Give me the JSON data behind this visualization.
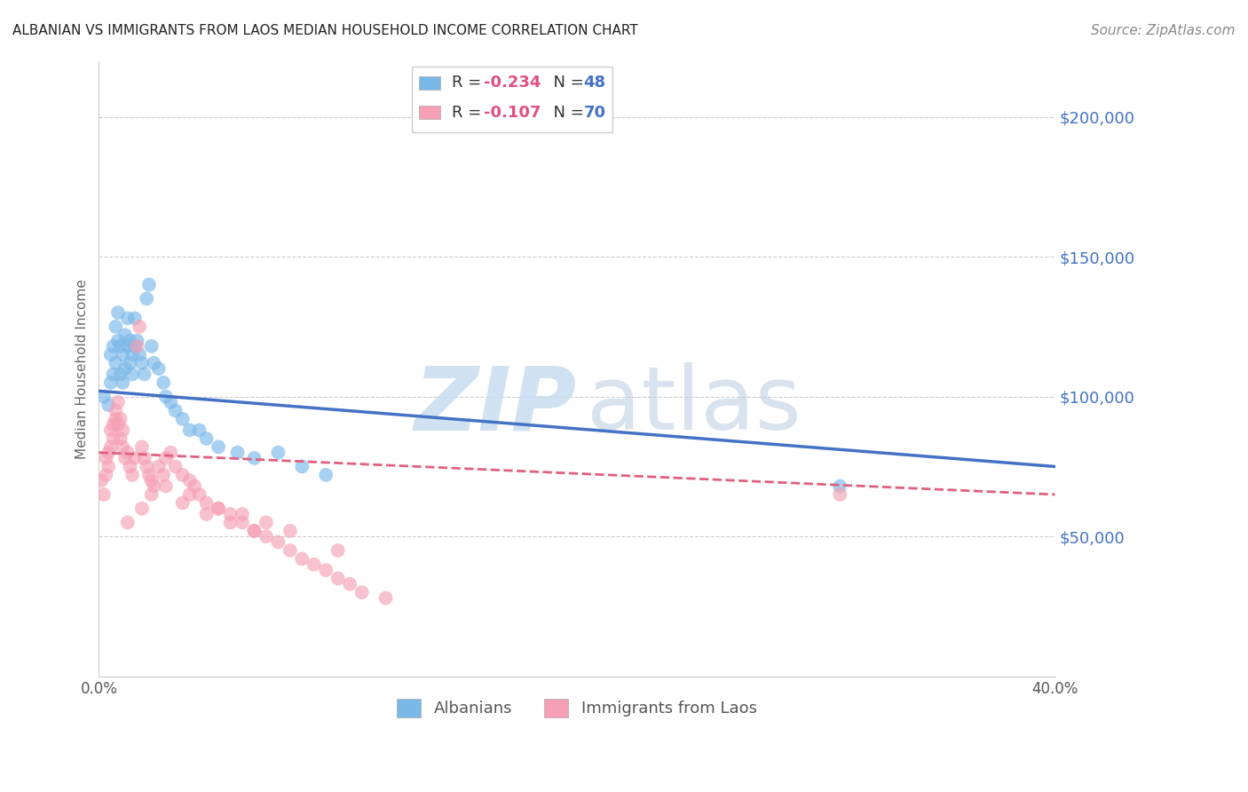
{
  "title": "ALBANIAN VS IMMIGRANTS FROM LAOS MEDIAN HOUSEHOLD INCOME CORRELATION CHART",
  "source": "Source: ZipAtlas.com",
  "ylabel": "Median Household Income",
  "background_color": "#ffffff",
  "legend_r1": "R = -0.234",
  "legend_n1": "N = 48",
  "legend_r2": "R = -0.107",
  "legend_n2": "N = 70",
  "legend_label1": "Albanians",
  "legend_label2": "Immigrants from Laos",
  "blue_color": "#7ab8e8",
  "pink_color": "#f5a0b5",
  "blue_line_color": "#4472c4",
  "pink_line_color": "#e06080",
  "ytick_labels": [
    "$50,000",
    "$100,000",
    "$150,000",
    "$200,000"
  ],
  "ytick_values": [
    50000,
    100000,
    150000,
    200000
  ],
  "ymin": 0,
  "ymax": 220000,
  "xmin": 0.0,
  "xmax": 0.4,
  "blue_line_x": [
    0.0,
    0.4
  ],
  "blue_line_y": [
    102000,
    75000
  ],
  "pink_line_x": [
    0.0,
    0.4
  ],
  "pink_line_y": [
    80000,
    65000
  ],
  "albanians_x": [
    0.002,
    0.004,
    0.005,
    0.005,
    0.006,
    0.006,
    0.007,
    0.007,
    0.008,
    0.008,
    0.009,
    0.009,
    0.01,
    0.01,
    0.011,
    0.011,
    0.012,
    0.012,
    0.013,
    0.013,
    0.014,
    0.014,
    0.015,
    0.015,
    0.016,
    0.017,
    0.018,
    0.019,
    0.02,
    0.021,
    0.022,
    0.023,
    0.025,
    0.027,
    0.028,
    0.03,
    0.032,
    0.035,
    0.038,
    0.042,
    0.045,
    0.05,
    0.058,
    0.065,
    0.075,
    0.085,
    0.095,
    0.31
  ],
  "albanians_y": [
    100000,
    97000,
    105000,
    115000,
    108000,
    118000,
    112000,
    125000,
    120000,
    130000,
    108000,
    118000,
    105000,
    115000,
    122000,
    110000,
    128000,
    118000,
    120000,
    112000,
    115000,
    108000,
    118000,
    128000,
    120000,
    115000,
    112000,
    108000,
    135000,
    140000,
    118000,
    112000,
    110000,
    105000,
    100000,
    98000,
    95000,
    92000,
    88000,
    88000,
    85000,
    82000,
    80000,
    78000,
    80000,
    75000,
    72000,
    68000
  ],
  "laos_x": [
    0.001,
    0.002,
    0.003,
    0.003,
    0.004,
    0.004,
    0.005,
    0.005,
    0.006,
    0.006,
    0.007,
    0.007,
    0.008,
    0.008,
    0.009,
    0.009,
    0.01,
    0.01,
    0.011,
    0.012,
    0.013,
    0.014,
    0.015,
    0.016,
    0.017,
    0.018,
    0.019,
    0.02,
    0.021,
    0.022,
    0.023,
    0.025,
    0.027,
    0.028,
    0.03,
    0.032,
    0.035,
    0.038,
    0.04,
    0.042,
    0.045,
    0.05,
    0.055,
    0.06,
    0.065,
    0.07,
    0.075,
    0.08,
    0.085,
    0.09,
    0.095,
    0.1,
    0.105,
    0.11,
    0.12,
    0.022,
    0.035,
    0.045,
    0.055,
    0.065,
    0.012,
    0.018,
    0.028,
    0.038,
    0.05,
    0.06,
    0.07,
    0.08,
    0.1,
    0.31
  ],
  "laos_y": [
    70000,
    65000,
    72000,
    78000,
    80000,
    75000,
    82000,
    88000,
    85000,
    90000,
    92000,
    95000,
    90000,
    98000,
    85000,
    92000,
    88000,
    82000,
    78000,
    80000,
    75000,
    72000,
    78000,
    118000,
    125000,
    82000,
    78000,
    75000,
    72000,
    70000,
    68000,
    75000,
    72000,
    78000,
    80000,
    75000,
    72000,
    70000,
    68000,
    65000,
    62000,
    60000,
    58000,
    55000,
    52000,
    50000,
    48000,
    45000,
    42000,
    40000,
    38000,
    35000,
    33000,
    30000,
    28000,
    65000,
    62000,
    58000,
    55000,
    52000,
    55000,
    60000,
    68000,
    65000,
    60000,
    58000,
    55000,
    52000,
    45000,
    65000
  ]
}
